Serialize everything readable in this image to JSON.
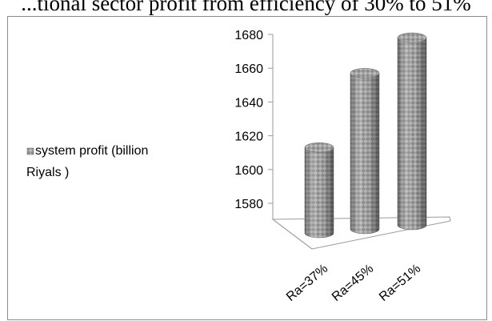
{
  "caption": "...tional sector profit from efficiency of 30% to 51%",
  "chart_data": {
    "type": "bar",
    "subtype": "3d-cylinder",
    "categories": [
      "Ra=37%",
      "Ra=45%",
      "Ra=51%"
    ],
    "series": [
      {
        "name": "system profit (billion Riyals )",
        "values": [
          1614,
          1658,
          1679
        ]
      }
    ],
    "ylim": [
      1580,
      1680
    ],
    "yticks": [
      1580,
      1600,
      1620,
      1640,
      1660,
      1680
    ],
    "grid": false,
    "legend_position": "left",
    "bar_color": "#8a8a8a"
  }
}
